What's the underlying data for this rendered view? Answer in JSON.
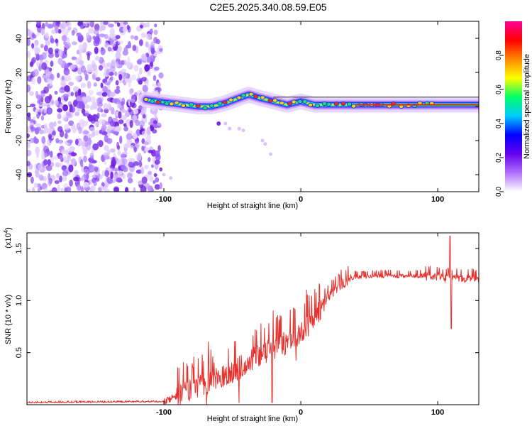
{
  "title": "C2E5.2025.340.08.59.E05",
  "chart_data": [
    {
      "type": "heatmap",
      "name": "spectrogram",
      "xlabel": "Height of straight line (km)",
      "ylabel": "Frequency (Hz)",
      "xlim": [
        -200,
        130
      ],
      "ylim": [
        -50,
        50
      ],
      "xticks": [
        -100,
        0,
        100
      ],
      "xtick_labels": [
        "-100",
        "0",
        "100"
      ],
      "yticks": [
        -40,
        -20,
        0,
        20,
        40
      ],
      "ytick_labels": [
        "-40",
        "-20",
        "0",
        "20",
        "40"
      ],
      "noise_region_x": [
        -200,
        -102
      ],
      "signal_onset_x": -113,
      "ridge": {
        "x": [
          -113,
          -105,
          -95,
          -85,
          -75,
          -65,
          -55,
          -45,
          -38,
          -30,
          -20,
          -10,
          0,
          10,
          20,
          40,
          60,
          80,
          100,
          130
        ],
        "y": [
          4,
          3,
          2,
          1,
          0,
          0,
          2,
          5,
          7,
          5,
          3,
          1,
          3,
          1,
          1,
          1,
          1,
          1,
          1,
          1
        ]
      },
      "colorbar": {
        "label": "Normalized spectral amplitude",
        "range": [
          0,
          1
        ],
        "ticks": [
          0.0,
          0.2,
          0.4,
          0.6,
          0.8
        ],
        "tick_labels": [
          "0.0",
          "0.2",
          "0.4",
          "0.6",
          "0.8"
        ],
        "colors": [
          "#ffffff",
          "#b070ff",
          "#6600ee",
          "#0000ff",
          "#00ccff",
          "#00ff66",
          "#ffff00",
          "#ff8800",
          "#ff0000",
          "#ff0099"
        ]
      }
    },
    {
      "type": "line",
      "name": "snr",
      "xlabel": "Height of straight line (km)",
      "ylabel": "SNR (10 * v/v)",
      "scale_label": "(x10",
      "scale_exp": "4",
      "xlim": [
        -200,
        130
      ],
      "ylim": [
        0,
        1.65
      ],
      "xticks": [
        -100,
        0,
        100
      ],
      "xtick_labels": [
        "-100",
        "0",
        "100"
      ],
      "yticks": [
        0.5,
        1.0,
        1.5
      ],
      "ytick_labels": [
        "0.5",
        "1.0",
        "1.5"
      ],
      "color": "#e8302c",
      "trend": {
        "x": [
          -200,
          -100,
          -90,
          -80,
          -70,
          -60,
          -50,
          -40,
          -30,
          -20,
          -10,
          0,
          10,
          20,
          30,
          40,
          60,
          80,
          100,
          105,
          110,
          130
        ],
        "y": [
          0.02,
          0.03,
          0.1,
          0.17,
          0.22,
          0.27,
          0.33,
          0.42,
          0.5,
          0.56,
          0.62,
          0.7,
          0.85,
          1.05,
          1.17,
          1.23,
          1.24,
          1.24,
          1.24,
          1.22,
          1.22,
          1.21
        ]
      },
      "extremes": [
        {
          "x": 109,
          "y": 1.62
        },
        {
          "x": 110,
          "y": 0.73
        },
        {
          "x": -79,
          "y": 0.36
        },
        {
          "x": -21,
          "y": 0.02
        }
      ]
    }
  ]
}
